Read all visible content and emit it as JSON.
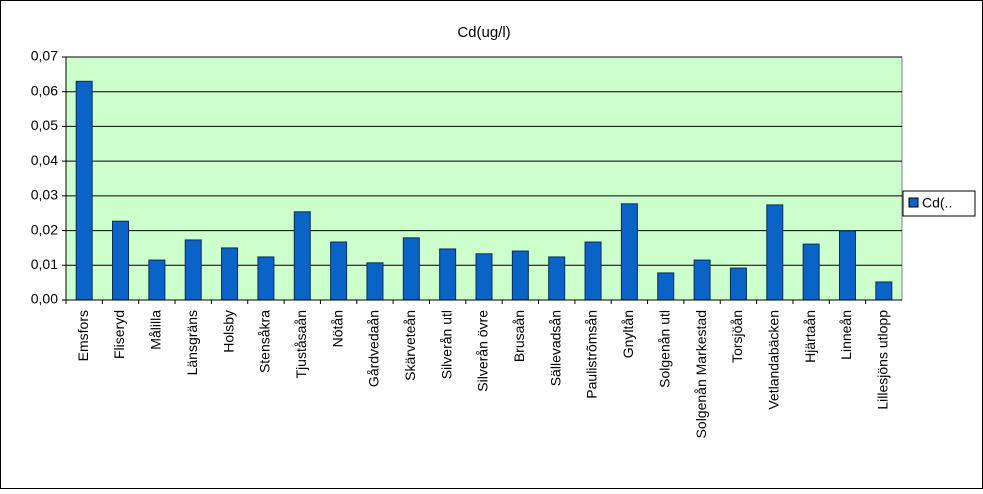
{
  "chart_data": {
    "type": "bar",
    "title": "Cd(ug/l)",
    "categories": [
      "Emsfors",
      "Fliseryd",
      "Målilla",
      "Länsgräns",
      "Holsby",
      "Stensåkra",
      "Tjuståsaån",
      "Nötån",
      "Gårdvedaån",
      "Skärveteån",
      "Silverån utl",
      "Silverån övre",
      "Brusaån",
      "Sällevadsån",
      "Paulistrõmsån",
      "Gnyltån",
      "Solgenån utl",
      "Solgenån Markestad",
      "Torsjöån",
      "Vetlandabäcken",
      "Hjärtaån",
      "Linneån",
      "Lillesjöns utlopp"
    ],
    "series": [
      {
        "name": "Cd(..",
        "color": "#0a64c8",
        "values": [
          0.063,
          0.0227,
          0.0115,
          0.0173,
          0.015,
          0.0124,
          0.0254,
          0.0167,
          0.0107,
          0.0179,
          0.0147,
          0.0133,
          0.0141,
          0.0124,
          0.0167,
          0.0277,
          0.0078,
          0.0115,
          0.0092,
          0.0274,
          0.0161,
          0.0199,
          0.0052
        ]
      }
    ],
    "ylim": [
      0,
      0.07
    ],
    "yticks": [
      {
        "value": 0,
        "label": "0,00"
      },
      {
        "value": 0.01,
        "label": "0,01"
      },
      {
        "value": 0.02,
        "label": "0,02"
      },
      {
        "value": 0.03,
        "label": "0,03"
      },
      {
        "value": 0.04,
        "label": "0,04"
      },
      {
        "value": 0.05,
        "label": "0,05"
      },
      {
        "value": 0.06,
        "label": "0,06"
      },
      {
        "value": 0.07,
        "label": "0,07"
      }
    ],
    "grid": true,
    "plot_background": "#ccffcc",
    "legend": "right"
  }
}
